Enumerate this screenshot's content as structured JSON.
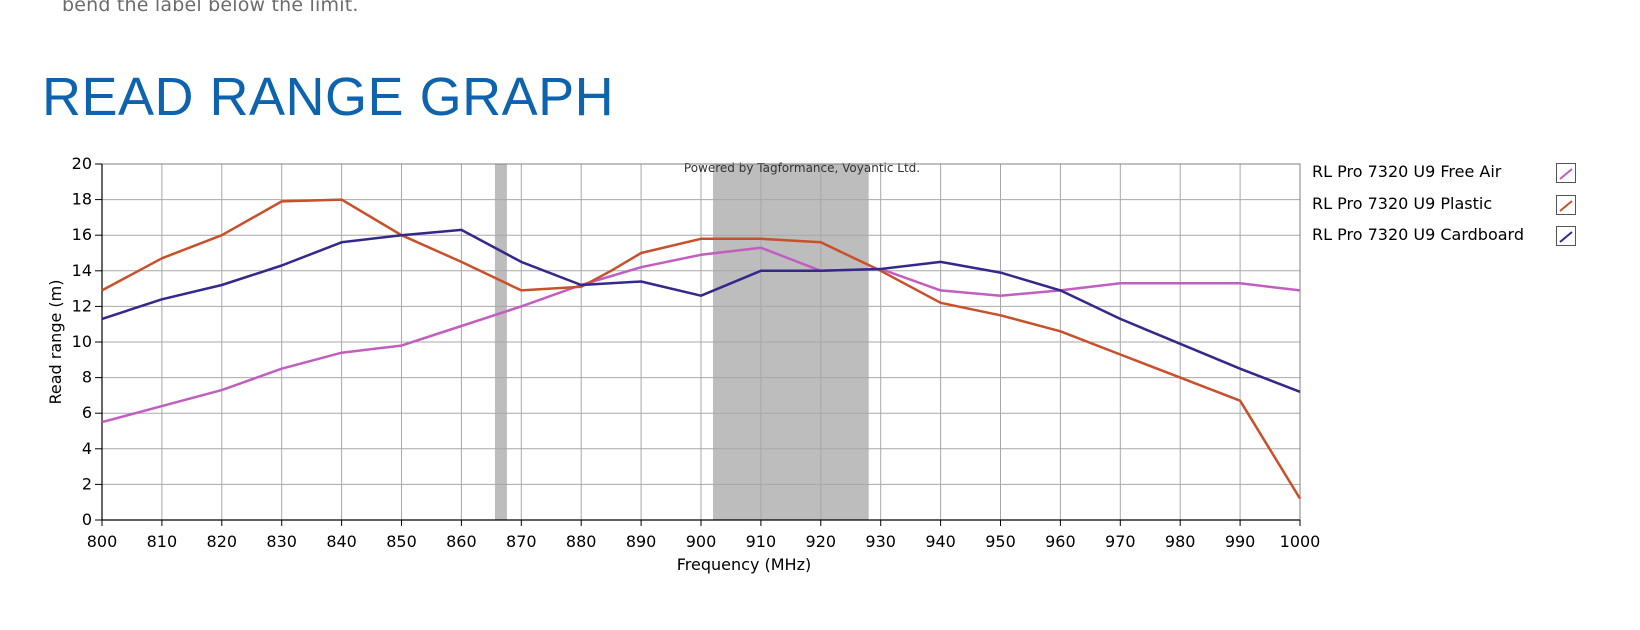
{
  "page": {
    "intro_text": "bend the label below the limit.",
    "section_title": "READ RANGE GRAPH"
  },
  "chart_data": {
    "type": "line",
    "title": "",
    "watermark": "Powered by Tagformance, Voyantic Ltd.",
    "xlabel": "Frequency (MHz)",
    "ylabel": "Read range (m)",
    "xlim": [
      800,
      1000
    ],
    "ylim": [
      0,
      20
    ],
    "x_ticks": [
      800,
      810,
      820,
      830,
      840,
      850,
      860,
      870,
      880,
      890,
      900,
      910,
      920,
      930,
      940,
      950,
      960,
      970,
      980,
      990,
      1000
    ],
    "y_ticks": [
      0,
      2,
      4,
      6,
      8,
      10,
      12,
      14,
      16,
      18,
      20
    ],
    "grid": true,
    "legend_position": "right",
    "shaded_bands": [
      {
        "x_start": 865.6,
        "x_end": 867.6
      },
      {
        "x_start": 902,
        "x_end": 928
      }
    ],
    "series": [
      {
        "name": "RL Pro 7320 U9 Free Air",
        "color": "#c15ec0",
        "x": [
          800,
          810,
          820,
          830,
          840,
          850,
          860,
          870,
          880,
          890,
          900,
          910,
          920,
          930,
          940,
          950,
          960,
          970,
          980,
          990,
          1000
        ],
        "y": [
          5.5,
          6.4,
          7.3,
          8.5,
          9.4,
          9.8,
          10.9,
          12.0,
          13.2,
          14.2,
          14.9,
          15.3,
          14.0,
          14.1,
          12.9,
          12.6,
          12.9,
          13.3,
          13.3,
          13.3,
          12.9
        ]
      },
      {
        "name": "RL Pro 7320 U9 Plastic",
        "color": "#c8502a",
        "x": [
          800,
          810,
          820,
          830,
          840,
          850,
          860,
          870,
          880,
          885,
          890,
          900,
          910,
          920,
          930,
          940,
          950,
          960,
          970,
          980,
          990,
          1000
        ],
        "y": [
          12.9,
          14.7,
          16.0,
          17.9,
          18.0,
          16.0,
          14.5,
          12.9,
          13.1,
          14.0,
          15.0,
          15.8,
          15.8,
          15.6,
          14.0,
          12.2,
          11.5,
          10.6,
          9.3,
          8.0,
          6.7,
          1.2
        ]
      },
      {
        "name": "RL Pro 7320 U9 Cardboard",
        "color": "#33288c",
        "x": [
          800,
          810,
          820,
          830,
          840,
          850,
          860,
          870,
          880,
          890,
          900,
          910,
          920,
          930,
          940,
          950,
          960,
          970,
          980,
          990,
          1000
        ],
        "y": [
          11.3,
          12.4,
          13.2,
          14.3,
          15.6,
          16.0,
          16.3,
          14.5,
          13.2,
          13.4,
          12.6,
          14.0,
          14.0,
          14.1,
          14.5,
          13.9,
          12.9,
          11.3,
          9.9,
          8.5,
          7.2
        ]
      }
    ]
  }
}
